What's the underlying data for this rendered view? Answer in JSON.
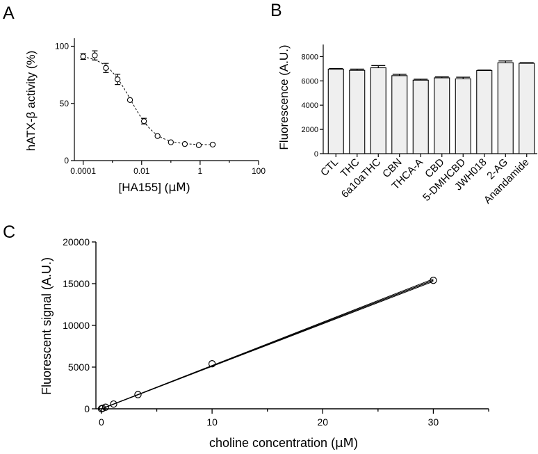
{
  "panels": {
    "a": "A",
    "b": "B",
    "c": "C"
  },
  "chart_data": [
    {
      "type": "scatter",
      "panel": "A",
      "xlabel_main": "[HA155] (",
      "xlabel_unit": "μM",
      "xlabel_end": ")",
      "ylabel": "hATX-β activity (%)",
      "xscale": "log",
      "xlim": [
        5e-05,
        100
      ],
      "ylim": [
        0,
        107
      ],
      "xticks": [
        0.0001,
        0.01,
        1,
        100
      ],
      "xtick_labels": [
        "0.0001",
        "0.01",
        "1",
        "100"
      ],
      "yticks": [
        0,
        50,
        100
      ],
      "ytick_labels": [
        "0",
        "50",
        "100"
      ],
      "points": [
        {
          "x": 0.0001,
          "y": 91,
          "err": 2.5
        },
        {
          "x": 0.00025,
          "y": 92,
          "err": 4
        },
        {
          "x": 0.0006,
          "y": 81,
          "err": 4
        },
        {
          "x": 0.0015,
          "y": 71,
          "err": 4.5
        },
        {
          "x": 0.004,
          "y": 53
        },
        {
          "x": 0.012,
          "y": 34.5,
          "err": 2.5
        },
        {
          "x": 0.035,
          "y": 21.5
        },
        {
          "x": 0.1,
          "y": 16
        },
        {
          "x": 0.3,
          "y": 14.5
        },
        {
          "x": 0.9,
          "y": 13.5
        },
        {
          "x": 2.7,
          "y": 14
        }
      ],
      "fit": {
        "type": "four-parameter logistic",
        "top": 92.5,
        "bottom": 13.8,
        "ic50": 0.0042,
        "hill": 1.0,
        "style": "dashed"
      }
    },
    {
      "type": "bar",
      "panel": "B",
      "ylabel": "Fluorescence (A.U.)",
      "ylim": [
        0,
        9000
      ],
      "yticks": [
        0,
        2000,
        4000,
        6000,
        8000
      ],
      "ytick_labels": [
        "0",
        "2000",
        "4000",
        "6000",
        "8000"
      ],
      "categories": [
        "CTL",
        "THC",
        "6a10aTHC",
        "CBN",
        "THCA-A",
        "CBD",
        "5-DMHCBD",
        "JWH018",
        "2-AG",
        "Anandamide"
      ],
      "values": [
        6970,
        6870,
        7080,
        6430,
        6060,
        6250,
        6170,
        6850,
        7500,
        7450
      ],
      "errors": [
        40,
        100,
        180,
        120,
        80,
        80,
        130,
        40,
        140,
        50
      ],
      "bar_color": "#efefef"
    },
    {
      "type": "scatter",
      "panel": "C",
      "xlabel_main": "choline concentration (",
      "xlabel_unit": "μM",
      "xlabel_end": ")",
      "ylabel": "Fluorescent signal (A.U.)",
      "xlim": [
        -0.5,
        35
      ],
      "ylim": [
        0,
        20000
      ],
      "xticks": [
        0,
        10,
        20,
        30
      ],
      "xtick_labels": [
        "0",
        "10",
        "20",
        "30"
      ],
      "yticks": [
        0,
        5000,
        10000,
        15000,
        20000
      ],
      "ytick_labels": [
        "0",
        "5000",
        "10000",
        "15000",
        "20000"
      ],
      "points": [
        {
          "x": 0,
          "y": 0
        },
        {
          "x": 0.1,
          "y": 52
        },
        {
          "x": 0.37,
          "y": 190
        },
        {
          "x": 1.1,
          "y": 570
        },
        {
          "x": 3.3,
          "y": 1700
        },
        {
          "x": 10,
          "y": 5400
        },
        {
          "x": 30,
          "y": 15400
        }
      ],
      "fit": {
        "type": "linear",
        "slope": 514,
        "intercept": 0,
        "band": {
          "slope_upper": 519,
          "slope_lower": 509
        }
      }
    }
  ]
}
